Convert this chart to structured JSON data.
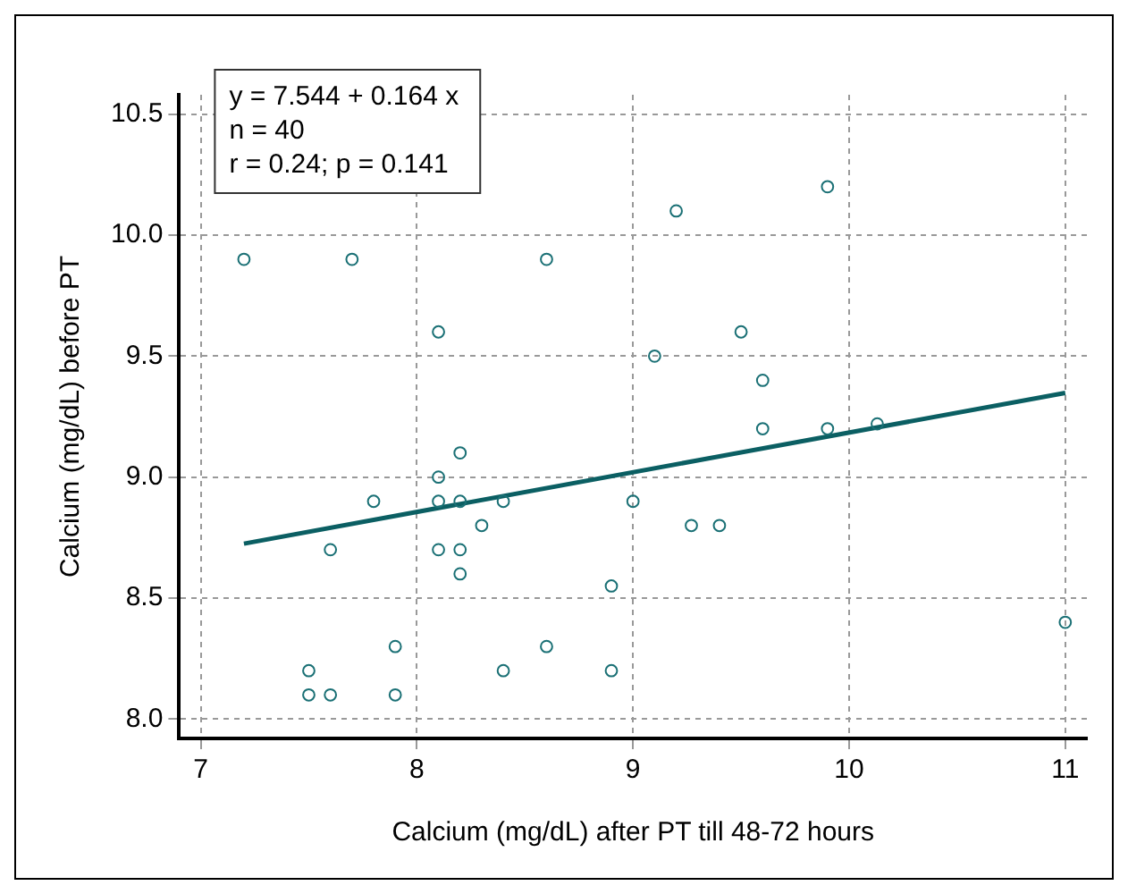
{
  "chart_data": {
    "type": "scatter",
    "xlabel": "Calcium (mg/dL) after PT till 48-72 hours",
    "ylabel": "Calcium (mg/dL) before PT",
    "annotations": [
      "y = 7.544 + 0.164 x",
      "n = 40",
      "r = 0.24; p = 0.141"
    ],
    "xlim": [
      6.9,
      11.1
    ],
    "ylim": [
      7.92,
      10.58
    ],
    "xticks": [
      7,
      8,
      9,
      10,
      11
    ],
    "yticks": [
      {
        "value": 8,
        "label": "8.0"
      },
      8.5,
      {
        "value": 9,
        "label": "9.0"
      },
      9.5,
      {
        "value": 10,
        "label": "10.0"
      },
      10.5
    ],
    "grid": true,
    "marker": "circle",
    "series": [
      {
        "color": "#1a7075",
        "x": [
          7.2,
          7.7,
          8.6,
          9.2,
          9.9,
          8.1,
          9.1,
          9.5,
          9.6,
          9.6,
          9.9,
          10.13,
          8.2,
          8.1,
          7.8,
          8.1,
          8.2,
          8.4,
          9.0,
          8.3,
          9.27,
          9.4,
          7.6,
          8.1,
          8.2,
          8.2,
          8.9,
          7.9,
          8.6,
          7.5,
          8.4,
          8.9,
          7.5,
          7.6,
          7.9,
          11.0
        ],
        "values": [
          9.9,
          9.9,
          9.9,
          10.1,
          10.2,
          9.6,
          9.5,
          9.6,
          9.4,
          9.2,
          9.2,
          9.22,
          9.1,
          9.0,
          8.9,
          8.9,
          8.9,
          8.9,
          8.9,
          8.8,
          8.8,
          8.8,
          8.7,
          8.7,
          8.7,
          8.6,
          8.55,
          8.3,
          8.3,
          8.2,
          8.2,
          8.2,
          8.1,
          8.1,
          8.1,
          8.4
        ]
      },
      {
        "type": "line",
        "color": "#0b5f63",
        "line_style": "solid",
        "marker": "none",
        "x": [
          7.2,
          11.0
        ],
        "values": [
          8.725,
          9.348
        ]
      }
    ]
  }
}
